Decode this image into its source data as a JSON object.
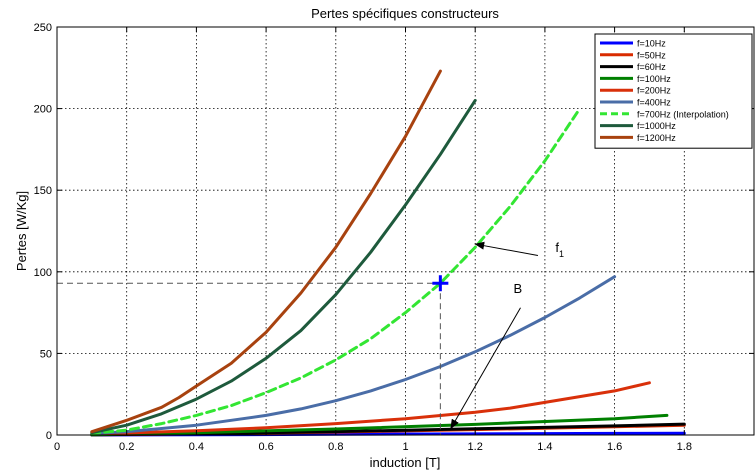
{
  "chart_data": {
    "type": "line",
    "title": "Pertes spécifiques constructeurs",
    "xlabel": "induction [T]",
    "ylabel": "Pertes [W/Kg]",
    "xlim": [
      0,
      2
    ],
    "ylim": [
      0,
      250
    ],
    "xticks": [
      0,
      0.2,
      0.4,
      0.6,
      0.8,
      1,
      1.2,
      1.4,
      1.6,
      1.8
    ],
    "xtick_labels": [
      "0",
      "0.2",
      "0.4",
      "0.6",
      "0.8",
      "1",
      "1.2",
      "1.4",
      "1.6",
      "1.8"
    ],
    "yticks": [
      0,
      50,
      100,
      150,
      200,
      250
    ],
    "ytick_labels": [
      "0",
      "50",
      "100",
      "150",
      "200",
      "250"
    ],
    "grid": true,
    "legend_position": "top-right",
    "series": [
      {
        "name": "f=10Hz",
        "color": "#0000ff",
        "dashed": false,
        "x": [
          0.1,
          0.4,
          0.8,
          1.2,
          1.6,
          1.8
        ],
        "y": [
          0.02,
          0.15,
          0.4,
          0.7,
          0.95,
          1.1
        ]
      },
      {
        "name": "f=50Hz",
        "color": "#d92b00",
        "dashed": false,
        "x": [
          0.1,
          0.4,
          0.8,
          1.2,
          1.6,
          1.8
        ],
        "y": [
          0.1,
          0.7,
          1.8,
          3.3,
          5.0,
          6.0
        ]
      },
      {
        "name": "f=60Hz",
        "color": "#000000",
        "dashed": false,
        "x": [
          0.1,
          0.4,
          0.8,
          1.2,
          1.6,
          1.8
        ],
        "y": [
          0.1,
          0.8,
          2.1,
          3.8,
          5.6,
          6.7
        ]
      },
      {
        "name": "f=100Hz",
        "color": "#008000",
        "dashed": false,
        "x": [
          0.1,
          0.4,
          0.8,
          1.2,
          1.6,
          1.75
        ],
        "y": [
          0.2,
          1.4,
          3.7,
          6.5,
          10.0,
          12.0
        ]
      },
      {
        "name": "f=200Hz",
        "color": "#d9300a",
        "dashed": false,
        "x": [
          0.1,
          0.2,
          0.4,
          0.6,
          0.8,
          1.0,
          1.2,
          1.3,
          1.4,
          1.6,
          1.7
        ],
        "y": [
          0.6,
          1.2,
          2.6,
          4.5,
          7.0,
          10.0,
          14.0,
          16.5,
          20.0,
          27.0,
          32.0
        ]
      },
      {
        "name": "f=400Hz",
        "color": "#4a6da7",
        "dashed": false,
        "x": [
          0.1,
          0.2,
          0.3,
          0.4,
          0.5,
          0.6,
          0.7,
          0.8,
          0.9,
          1.0,
          1.1,
          1.2,
          1.3,
          1.4,
          1.5,
          1.6
        ],
        "y": [
          1.0,
          2.0,
          4.0,
          6.0,
          9.0,
          12.0,
          16.0,
          21.0,
          27.0,
          34.0,
          42.0,
          51.0,
          61.0,
          72.0,
          84.0,
          97.0
        ]
      },
      {
        "name": "f=700Hz  (Interpolation)",
        "color": "#33e633",
        "dashed": true,
        "x": [
          0.1,
          0.2,
          0.3,
          0.4,
          0.5,
          0.6,
          0.7,
          0.8,
          0.9,
          1.0,
          1.1,
          1.2,
          1.3,
          1.4,
          1.5
        ],
        "y": [
          1.0,
          3.0,
          7.0,
          12.0,
          18.0,
          26.0,
          35.0,
          46.0,
          59.0,
          75.0,
          93.0,
          115.0,
          140.0,
          168.0,
          200.0
        ]
      },
      {
        "name": "f=1000Hz",
        "color": "#1e5a3c",
        "dashed": false,
        "x": [
          0.1,
          0.2,
          0.3,
          0.4,
          0.5,
          0.6,
          0.7,
          0.8,
          0.9,
          1.0,
          1.1,
          1.2
        ],
        "y": [
          1.5,
          6.0,
          13.0,
          22.0,
          33.0,
          47.0,
          64.0,
          86.0,
          112.0,
          141.0,
          172.0,
          205.0
        ]
      },
      {
        "name": "f=1200Hz",
        "color": "#a8420f",
        "dashed": false,
        "x": [
          0.1,
          0.2,
          0.3,
          0.35,
          0.4,
          0.5,
          0.6,
          0.7,
          0.8,
          0.9,
          1.0,
          1.1
        ],
        "y": [
          2.0,
          9.0,
          17.0,
          23.0,
          30.0,
          44.0,
          63.0,
          87.0,
          115.0,
          148.0,
          183.0,
          223.0
        ]
      }
    ],
    "marker": {
      "x": 1.1,
      "y": 93
    },
    "guide_y": 93,
    "annotations": [
      {
        "id": "f1",
        "text": "f",
        "sub": "1",
        "text_pos": [
          1.43,
          112
        ],
        "arrow_from": [
          1.38,
          110
        ],
        "arrow_to": [
          1.2,
          117
        ]
      },
      {
        "id": "B",
        "text": "B",
        "text_pos": [
          1.31,
          87
        ],
        "arrow_from": [
          1.33,
          78
        ],
        "arrow_to": [
          1.13,
          4
        ]
      }
    ]
  }
}
